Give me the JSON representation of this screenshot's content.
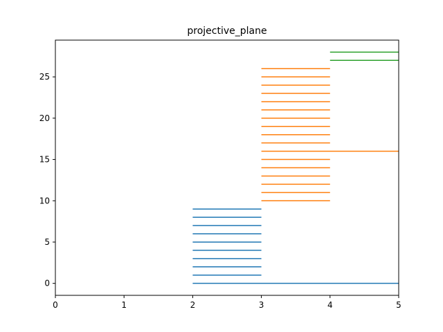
{
  "chart_data": {
    "type": "line",
    "title": "projective_plane",
    "xlabel": "",
    "ylabel": "",
    "xlim": [
      0,
      5
    ],
    "ylim": [
      -1.45,
      29.45
    ],
    "x_ticks": [
      "0",
      "1",
      "2",
      "3",
      "4",
      "5"
    ],
    "y_ticks": [
      "0",
      "5",
      "10",
      "15",
      "20",
      "25"
    ],
    "grid": false,
    "legend": "none",
    "series": [
      {
        "color": "#1f77b4",
        "segments": [
          {
            "x": [
              2,
              5
            ],
            "y": 0
          },
          {
            "x": [
              2,
              3
            ],
            "y": 1
          },
          {
            "x": [
              2,
              3
            ],
            "y": 2
          },
          {
            "x": [
              2,
              3
            ],
            "y": 3
          },
          {
            "x": [
              2,
              3
            ],
            "y": 4
          },
          {
            "x": [
              2,
              3
            ],
            "y": 5
          },
          {
            "x": [
              2,
              3
            ],
            "y": 6
          },
          {
            "x": [
              2,
              3
            ],
            "y": 7
          },
          {
            "x": [
              2,
              3
            ],
            "y": 8
          },
          {
            "x": [
              2,
              3
            ],
            "y": 9
          }
        ]
      },
      {
        "color": "#ff7f0e",
        "segments": [
          {
            "x": [
              3,
              4
            ],
            "y": 10
          },
          {
            "x": [
              3,
              4
            ],
            "y": 11
          },
          {
            "x": [
              3,
              4
            ],
            "y": 12
          },
          {
            "x": [
              3,
              4
            ],
            "y": 13
          },
          {
            "x": [
              3,
              4
            ],
            "y": 14
          },
          {
            "x": [
              3,
              4
            ],
            "y": 15
          },
          {
            "x": [
              3,
              5
            ],
            "y": 16
          },
          {
            "x": [
              3,
              4
            ],
            "y": 17
          },
          {
            "x": [
              3,
              4
            ],
            "y": 18
          },
          {
            "x": [
              3,
              4
            ],
            "y": 19
          },
          {
            "x": [
              3,
              4
            ],
            "y": 20
          },
          {
            "x": [
              3,
              4
            ],
            "y": 21
          },
          {
            "x": [
              3,
              4
            ],
            "y": 22
          },
          {
            "x": [
              3,
              4
            ],
            "y": 23
          },
          {
            "x": [
              3,
              4
            ],
            "y": 24
          },
          {
            "x": [
              3,
              4
            ],
            "y": 25
          },
          {
            "x": [
              3,
              4
            ],
            "y": 26
          }
        ]
      },
      {
        "color": "#2ca02c",
        "segments": [
          {
            "x": [
              4,
              5
            ],
            "y": 27
          },
          {
            "x": [
              4,
              5
            ],
            "y": 28
          }
        ]
      }
    ]
  }
}
